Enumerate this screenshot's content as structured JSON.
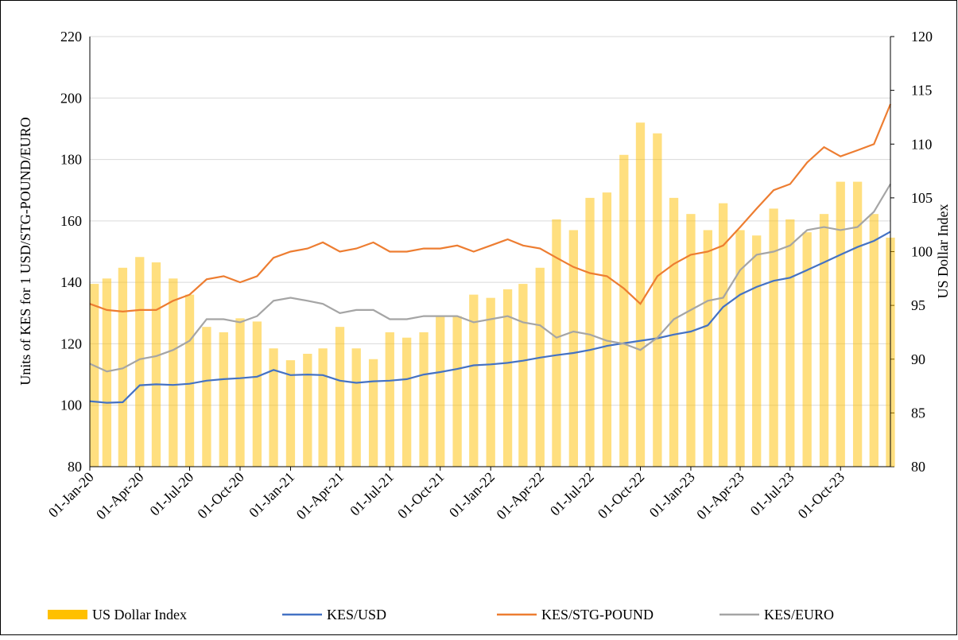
{
  "chart_data": {
    "type": "combo",
    "y_label": "Units of KES for 1 USD/STG-POUND/EURO",
    "y2_label": "US Dollar Index",
    "x": [
      "2020-01-01",
      "2020-02-01",
      "2020-03-01",
      "2020-04-01",
      "2020-05-01",
      "2020-06-01",
      "2020-07-01",
      "2020-08-01",
      "2020-09-01",
      "2020-10-01",
      "2020-11-01",
      "2020-12-01",
      "2021-01-01",
      "2021-02-01",
      "2021-03-01",
      "2021-04-01",
      "2021-05-01",
      "2021-06-01",
      "2021-07-01",
      "2021-08-01",
      "2021-09-01",
      "2021-10-01",
      "2021-11-01",
      "2021-12-01",
      "2022-01-01",
      "2022-02-01",
      "2022-03-01",
      "2022-04-01",
      "2022-05-01",
      "2022-06-01",
      "2022-07-01",
      "2022-08-01",
      "2022-09-01",
      "2022-10-01",
      "2022-11-01",
      "2022-12-01",
      "2023-01-01",
      "2023-02-01",
      "2023-03-01",
      "2023-04-01",
      "2023-05-01",
      "2023-06-01",
      "2023-07-01",
      "2023-08-01",
      "2023-09-01",
      "2023-10-01",
      "2023-11-01",
      "2023-12-01",
      "2023-12-31"
    ],
    "xlim": [
      "2020-01-01",
      "2023-12-31"
    ],
    "xticks": [
      {
        "value": "2020-01-01",
        "label": "01-Jan-20"
      },
      {
        "value": "2020-04-01",
        "label": "01-Apr-20"
      },
      {
        "value": "2020-07-01",
        "label": "01-Jul-20"
      },
      {
        "value": "2020-10-01",
        "label": "01-Oct-20"
      },
      {
        "value": "2021-01-01",
        "label": "01-Jan-21"
      },
      {
        "value": "2021-04-01",
        "label": "01-Apr-21"
      },
      {
        "value": "2021-07-01",
        "label": "01-Jul-21"
      },
      {
        "value": "2021-10-01",
        "label": "01-Oct-21"
      },
      {
        "value": "2022-01-01",
        "label": "01-Jan-22"
      },
      {
        "value": "2022-04-01",
        "label": "01-Apr-22"
      },
      {
        "value": "2022-07-01",
        "label": "01-Jul-22"
      },
      {
        "value": "2022-10-01",
        "label": "01-Oct-22"
      },
      {
        "value": "2023-01-01",
        "label": "01-Jan-23"
      },
      {
        "value": "2023-04-01",
        "label": "01-Apr-23"
      },
      {
        "value": "2023-07-01",
        "label": "01-Jul-23"
      },
      {
        "value": "2023-10-01",
        "label": "01-Oct-23"
      }
    ],
    "ylim": [
      80,
      220
    ],
    "yticks": [
      80,
      100,
      120,
      140,
      160,
      180,
      200,
      220
    ],
    "y2lim": [
      80,
      120
    ],
    "y2ticks": [
      80,
      85,
      90,
      95,
      100,
      105,
      110,
      115,
      120
    ],
    "grid": true,
    "legend": "bottom",
    "series": [
      {
        "name": "US Dollar Index",
        "type": "bar",
        "axis": "y2",
        "color": "#ffc000",
        "values": [
          97,
          97.5,
          98.5,
          99.5,
          99,
          97.5,
          96,
          93,
          92.5,
          93.8,
          93.5,
          91,
          89.9,
          90.5,
          91,
          93,
          91,
          90,
          92.5,
          92,
          92.5,
          94,
          94,
          96,
          95.7,
          96.5,
          97,
          98.5,
          103,
          102,
          105,
          105.5,
          109,
          112,
          111,
          105,
          103.5,
          102,
          104.5,
          102,
          101.5,
          104,
          103,
          101.8,
          103.5,
          106.5,
          106.5,
          103.5,
          101.3
        ]
      },
      {
        "name": "KES/USD",
        "type": "line",
        "color": "#4472c4",
        "values": [
          101.3,
          100.8,
          101,
          106.5,
          106.8,
          106.6,
          107,
          108,
          108.5,
          108.8,
          109.3,
          111.5,
          109.8,
          110,
          109.8,
          108,
          107.3,
          107.8,
          108,
          108.5,
          110,
          110.8,
          111.8,
          113,
          113.3,
          113.8,
          114.5,
          115.5,
          116.3,
          117,
          118,
          119.3,
          120.2,
          121,
          121.8,
          123,
          124,
          126,
          132,
          136,
          138.5,
          140.5,
          141.5,
          144,
          146.5,
          149,
          151.5,
          153.5,
          156.5
        ]
      },
      {
        "name": "KES/STG-POUND",
        "type": "line",
        "color": "#ed7d31",
        "values": [
          133,
          131,
          130.5,
          131,
          131,
          134,
          136,
          141,
          142,
          140,
          142,
          148,
          150,
          151,
          153,
          150,
          151,
          153,
          150,
          150,
          151,
          151,
          152,
          150,
          152,
          154,
          152,
          151,
          148,
          145,
          143,
          142,
          138,
          133,
          142,
          146,
          149,
          150,
          152,
          158,
          164,
          170,
          172,
          179,
          184,
          181,
          183,
          185,
          198
        ]
      },
      {
        "name": "KES/EURO",
        "type": "line",
        "color": "#a5a5a5",
        "values": [
          113.5,
          111,
          112,
          115,
          116,
          118,
          121,
          128,
          128,
          127,
          129,
          134,
          135,
          134,
          133,
          130,
          131,
          131,
          128,
          128,
          129,
          129,
          129,
          127,
          128,
          129,
          127,
          126,
          122,
          124,
          123,
          121,
          120,
          118,
          122,
          128,
          131,
          134,
          135,
          144,
          149,
          150,
          152,
          157,
          158,
          157,
          158,
          163,
          172
        ]
      }
    ]
  }
}
